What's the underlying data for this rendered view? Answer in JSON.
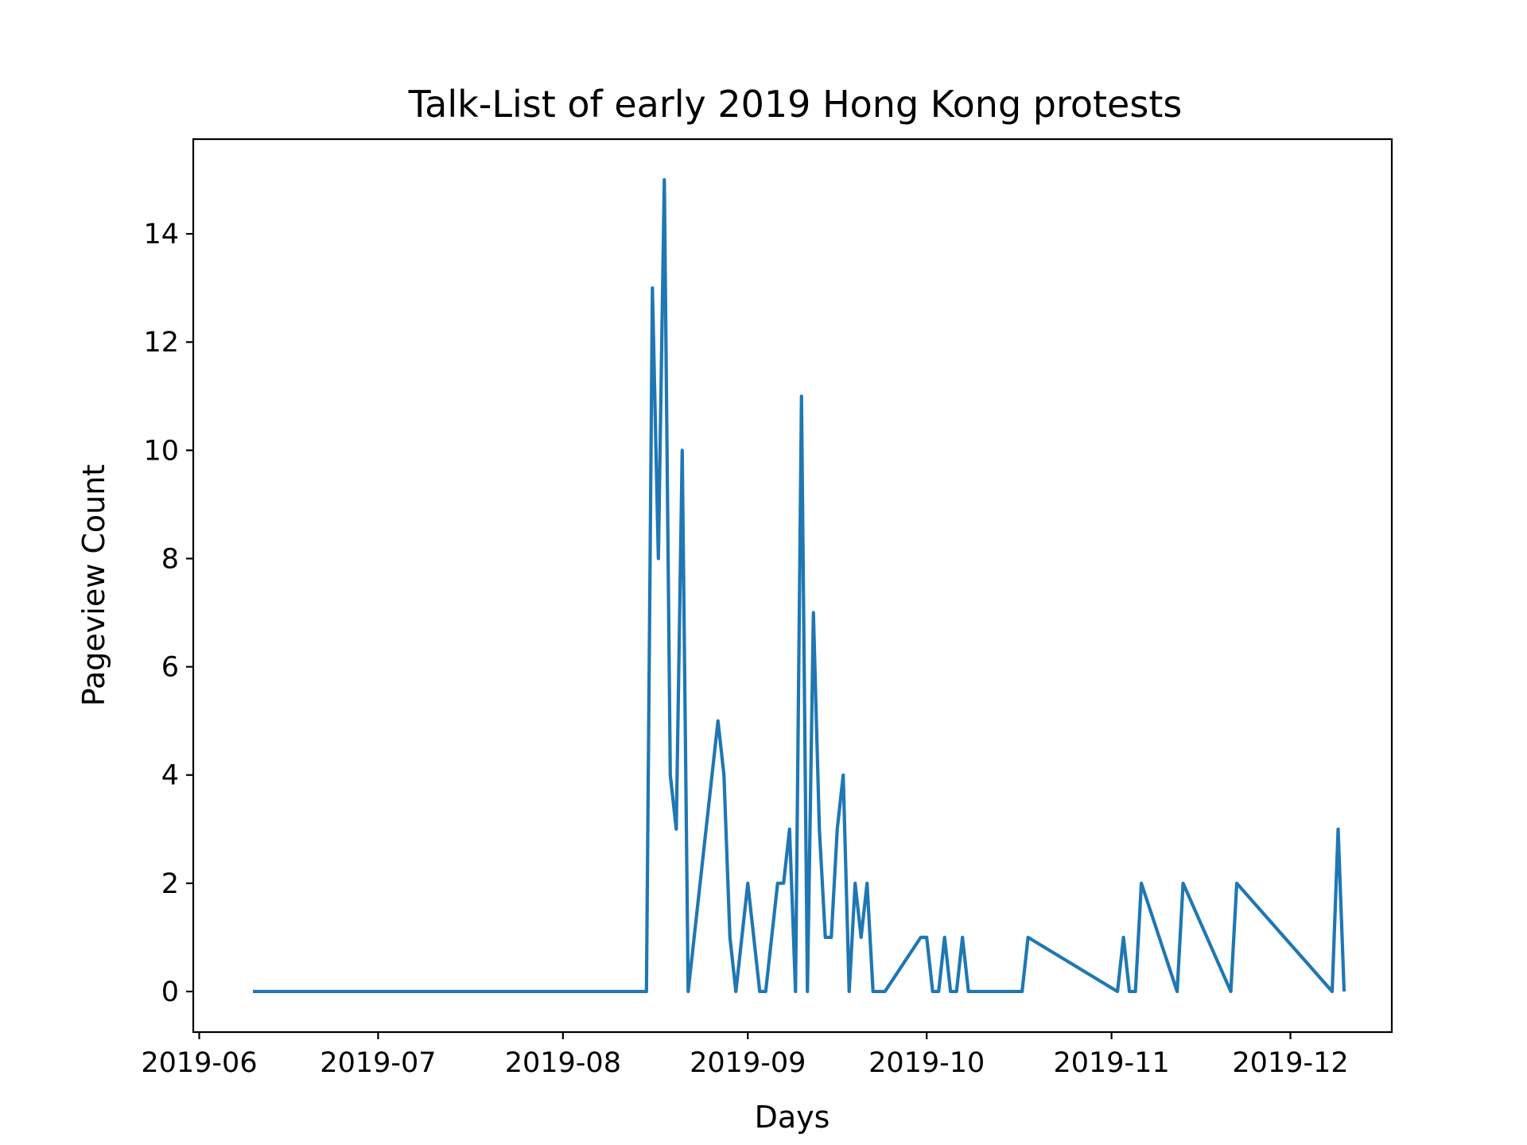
{
  "chart_data": {
    "type": "line",
    "title": "Talk-List of early 2019 Hong Kong protests",
    "xlabel": "Days",
    "ylabel": "Pageview Count",
    "xlim": [
      "2019-05-31",
      "2019-12-18"
    ],
    "ylim": [
      -0.75,
      15.75
    ],
    "grid": false,
    "legend": "none",
    "color": "#1f77b4",
    "x_ticks": [
      {
        "date": "2019-06-01",
        "label": "2019-06"
      },
      {
        "date": "2019-07-01",
        "label": "2019-07"
      },
      {
        "date": "2019-08-01",
        "label": "2019-08"
      },
      {
        "date": "2019-09-01",
        "label": "2019-09"
      },
      {
        "date": "2019-10-01",
        "label": "2019-10"
      },
      {
        "date": "2019-11-01",
        "label": "2019-11"
      },
      {
        "date": "2019-12-01",
        "label": "2019-12"
      }
    ],
    "y_ticks": [
      0,
      2,
      4,
      6,
      8,
      10,
      12,
      14
    ],
    "series": [
      {
        "x": [
          "2019-06-10",
          "2019-08-15",
          "2019-08-16",
          "2019-08-17",
          "2019-08-18",
          "2019-08-19",
          "2019-08-20",
          "2019-08-21",
          "2019-08-22",
          "2019-08-27",
          "2019-08-28",
          "2019-08-29",
          "2019-08-30",
          "2019-09-01",
          "2019-09-03",
          "2019-09-04",
          "2019-09-06",
          "2019-09-07",
          "2019-09-08",
          "2019-09-09",
          "2019-09-10",
          "2019-09-11",
          "2019-09-12",
          "2019-09-13",
          "2019-09-14",
          "2019-09-15",
          "2019-09-16",
          "2019-09-17",
          "2019-09-18",
          "2019-09-19",
          "2019-09-20",
          "2019-09-21",
          "2019-09-22",
          "2019-09-24",
          "2019-09-30",
          "2019-10-01",
          "2019-10-02",
          "2019-10-03",
          "2019-10-04",
          "2019-10-05",
          "2019-10-06",
          "2019-10-07",
          "2019-10-08",
          "2019-10-17",
          "2019-10-18",
          "2019-11-02",
          "2019-11-03",
          "2019-11-04",
          "2019-11-05",
          "2019-11-06",
          "2019-11-12",
          "2019-11-13",
          "2019-11-21",
          "2019-11-22",
          "2019-12-08",
          "2019-12-09",
          "2019-12-10"
        ],
        "values": [
          0,
          0,
          13,
          8,
          15,
          4,
          3,
          10,
          0,
          5,
          4,
          1,
          0,
          2,
          0,
          0,
          2,
          2,
          3,
          0,
          11,
          0,
          7,
          3,
          1,
          1,
          3,
          4,
          0,
          2,
          1,
          2,
          0,
          0,
          1,
          1,
          0,
          0,
          1,
          0,
          0,
          1,
          0,
          0,
          1,
          0,
          1,
          0,
          0,
          2,
          0,
          2,
          0,
          2,
          0,
          3,
          0
        ]
      }
    ]
  }
}
